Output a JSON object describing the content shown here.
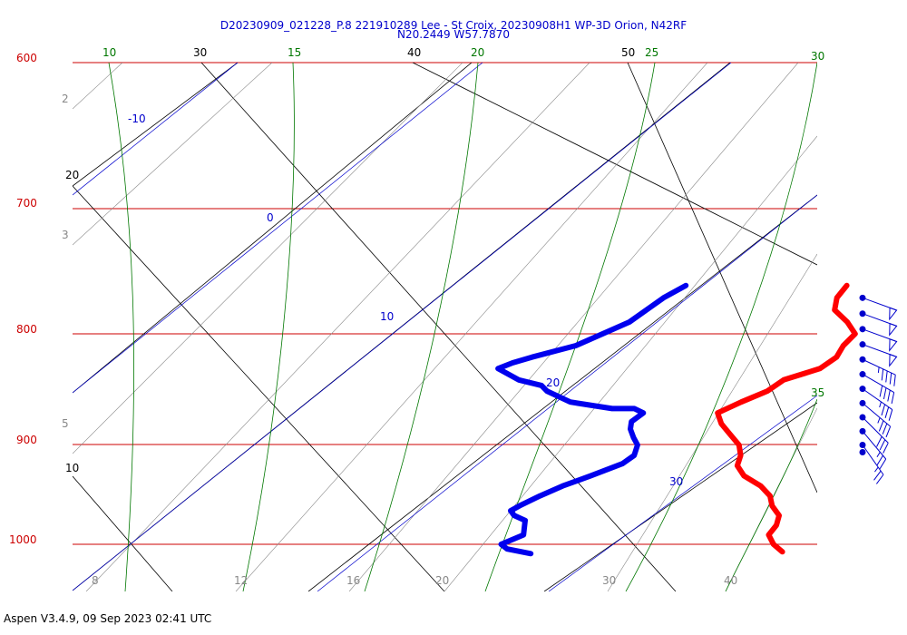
{
  "chart_data": {
    "type": "skew-t",
    "title": "D20230909_021228_P.8 221910289 Lee - St Croix, 20230908H1 WP-3D Orion, N42RF",
    "subtitle": "N20.2449 W57.7870",
    "footer": "Aspen V3.4.9, 09 Sep 2023  02:41 UTC",
    "pressure_ticks": [
      "600",
      "700",
      "800",
      "900",
      "1000"
    ],
    "isotherm_labels": [
      "20",
      "30",
      "40",
      "50",
      "10"
    ],
    "mixing_ratio_labels": [
      "2",
      "3",
      "5",
      "8",
      "12",
      "16",
      "20",
      "30",
      "40"
    ],
    "dry_adiabat_labels": [
      "10",
      "15",
      "20",
      "25",
      "30",
      "35"
    ],
    "moist_adiabat_labels": [
      "-10",
      "0",
      "10",
      "20",
      "30"
    ],
    "temperature_profile": {
      "color": "#ff0000",
      "points": [
        [
          760,
          20.6
        ],
        [
          770,
          20.6
        ],
        [
          780,
          20.9
        ],
        [
          790,
          21.8
        ],
        [
          800,
          22.5
        ],
        [
          810,
          22.4
        ],
        [
          820,
          22.5
        ],
        [
          830,
          22.2
        ],
        [
          840,
          21.1
        ],
        [
          850,
          20.8
        ],
        [
          860,
          20.1
        ],
        [
          870,
          19.5
        ],
        [
          880,
          20.0
        ],
        [
          890,
          20.7
        ],
        [
          900,
          21.4
        ],
        [
          910,
          21.8
        ],
        [
          920,
          22.0
        ],
        [
          930,
          22.6
        ],
        [
          940,
          23.6
        ],
        [
          950,
          24.3
        ],
        [
          960,
          24.7
        ],
        [
          970,
          25.3
        ],
        [
          980,
          25.5
        ],
        [
          990,
          25.5
        ],
        [
          1000,
          26.0
        ],
        [
          1008,
          26.6
        ]
      ]
    },
    "dewpoint_profile": {
      "color": "#0000ee",
      "points": [
        [
          760,
          14.1
        ],
        [
          770,
          13.6
        ],
        [
          780,
          13.3
        ],
        [
          790,
          13.0
        ],
        [
          800,
          12.3
        ],
        [
          810,
          11.6
        ],
        [
          820,
          10.2
        ],
        [
          825,
          9.6
        ],
        [
          830,
          9.2
        ],
        [
          840,
          10.4
        ],
        [
          845,
          11.5
        ],
        [
          850,
          11.9
        ],
        [
          860,
          13.2
        ],
        [
          866,
          15.1
        ],
        [
          866,
          16.0
        ],
        [
          870,
          16.5
        ],
        [
          878,
          16.3
        ],
        [
          885,
          16.5
        ],
        [
          893,
          16.9
        ],
        [
          900,
          17.3
        ],
        [
          910,
          17.5
        ],
        [
          918,
          17.3
        ],
        [
          930,
          16.4
        ],
        [
          940,
          15.6
        ],
        [
          950,
          15.0
        ],
        [
          960,
          14.5
        ],
        [
          965,
          14.3
        ],
        [
          970,
          14.6
        ],
        [
          975,
          15.2
        ],
        [
          990,
          15.6
        ],
        [
          1000,
          15.0
        ],
        [
          1005,
          15.4
        ],
        [
          1010,
          16.5
        ]
      ]
    },
    "wind_barbs": [
      {
        "pressure": 770,
        "dir": 110,
        "speed": 50
      },
      {
        "pressure": 783,
        "dir": 110,
        "speed": 50
      },
      {
        "pressure": 796,
        "dir": 110,
        "speed": 50
      },
      {
        "pressure": 809,
        "dir": 110,
        "speed": 50
      },
      {
        "pressure": 822,
        "dir": 115,
        "speed": 45
      },
      {
        "pressure": 835,
        "dir": 120,
        "speed": 40
      },
      {
        "pressure": 848,
        "dir": 125,
        "speed": 35
      },
      {
        "pressure": 861,
        "dir": 130,
        "speed": 35
      },
      {
        "pressure": 874,
        "dir": 135,
        "speed": 30
      },
      {
        "pressure": 887,
        "dir": 140,
        "speed": 25
      },
      {
        "pressure": 900,
        "dir": 145,
        "speed": 25
      },
      {
        "pressure": 907,
        "dir": 0,
        "speed": 0
      }
    ]
  }
}
